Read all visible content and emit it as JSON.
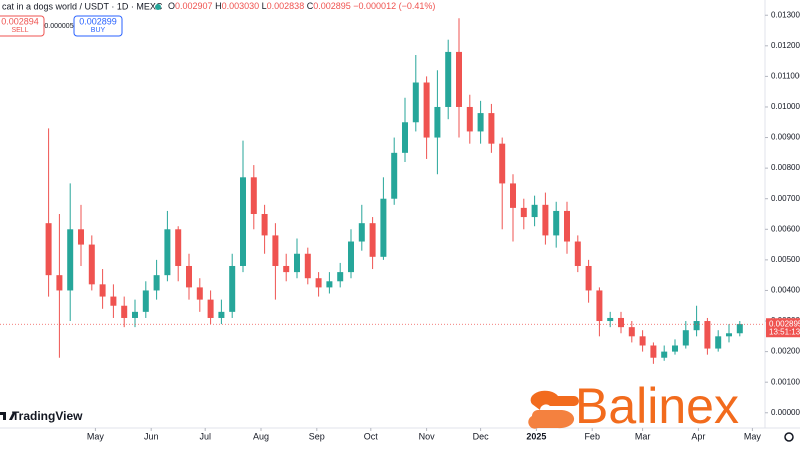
{
  "header": {
    "symbol": "cat in a dogs world / USDT · 1D · MEXC",
    "ohlc": [
      {
        "label": "O",
        "value": "0.002907"
      },
      {
        "label": "H",
        "value": "0.003030"
      },
      {
        "label": "L",
        "value": "0.002838"
      },
      {
        "label": "C",
        "value": "0.002895"
      }
    ],
    "change": "−0.000012 (−0.41%)",
    "sell_price": "0.002894",
    "sell_label": "SELL",
    "spread": "0.000005",
    "buy_price": "0.002899",
    "buy_label": "BUY"
  },
  "chart_data": {
    "type": "candlestick",
    "up_color": "#26a69a",
    "down_color": "#ef5350",
    "x": [
      27,
      33,
      39,
      45,
      51,
      57,
      63,
      69,
      75,
      81,
      87,
      93,
      99,
      105,
      111,
      117,
      123,
      129,
      135,
      141,
      147,
      153,
      159,
      165,
      171,
      177,
      183,
      189,
      195,
      201,
      207,
      213,
      219,
      225,
      231,
      237,
      243,
      249,
      255,
      261,
      267,
      273,
      279,
      285,
      291,
      297,
      303,
      309,
      315,
      321,
      327,
      333,
      339,
      345,
      351,
      357,
      363,
      369,
      375,
      381,
      387,
      393,
      399,
      405,
      411
    ],
    "open": [
      0.0062,
      0.0045,
      0.004,
      0.006,
      0.0055,
      0.0042,
      0.0038,
      0.0035,
      0.0031,
      0.0033,
      0.004,
      0.0045,
      0.006,
      0.0048,
      0.0041,
      0.0037,
      0.0031,
      0.0033,
      0.0048,
      0.0077,
      0.0065,
      0.0058,
      0.0048,
      0.0046,
      0.0052,
      0.0044,
      0.0041,
      0.0043,
      0.0046,
      0.0056,
      0.0062,
      0.0051,
      0.007,
      0.0085,
      0.0095,
      0.0108,
      0.009,
      0.01,
      0.0118,
      0.01,
      0.0092,
      0.0098,
      0.0088,
      0.0075,
      0.0067,
      0.0064,
      0.0068,
      0.0058,
      0.0066,
      0.0056,
      0.0048,
      0.004,
      0.003,
      0.0031,
      0.0028,
      0.0025,
      0.0022,
      0.0018,
      0.002,
      0.0022,
      0.0027,
      0.003,
      0.0021,
      0.0025,
      0.0026
    ],
    "high": [
      0.0093,
      0.0065,
      0.0075,
      0.0068,
      0.0058,
      0.0047,
      0.0042,
      0.0038,
      0.0037,
      0.0043,
      0.005,
      0.0066,
      0.0061,
      0.0052,
      0.0044,
      0.004,
      0.0037,
      0.0052,
      0.0089,
      0.0081,
      0.0068,
      0.0062,
      0.0052,
      0.0057,
      0.0054,
      0.0046,
      0.0046,
      0.0049,
      0.006,
      0.0068,
      0.0064,
      0.0077,
      0.009,
      0.0103,
      0.0117,
      0.011,
      0.0112,
      0.0122,
      0.0129,
      0.0104,
      0.0102,
      0.0101,
      0.009,
      0.0078,
      0.007,
      0.0071,
      0.0072,
      0.0069,
      0.0069,
      0.0058,
      0.005,
      0.0041,
      0.0033,
      0.0033,
      0.003,
      0.0027,
      0.0023,
      0.0022,
      0.0024,
      0.003,
      0.0035,
      0.0031,
      0.0027,
      0.0029,
      0.003
    ],
    "low": [
      0.0038,
      0.0018,
      0.003,
      0.0048,
      0.004,
      0.0034,
      0.0031,
      0.0028,
      0.0028,
      0.0031,
      0.0037,
      0.0043,
      0.0043,
      0.0037,
      0.0033,
      0.0029,
      0.0029,
      0.0031,
      0.0046,
      0.006,
      0.0052,
      0.0037,
      0.0043,
      0.0044,
      0.0042,
      0.0038,
      0.0039,
      0.0041,
      0.0044,
      0.0053,
      0.0047,
      0.005,
      0.0068,
      0.0082,
      0.0092,
      0.0083,
      0.0078,
      0.0096,
      0.009,
      0.0088,
      0.0088,
      0.0085,
      0.006,
      0.0056,
      0.006,
      0.0061,
      0.0055,
      0.0054,
      0.0052,
      0.0046,
      0.0036,
      0.0025,
      0.0028,
      0.0026,
      0.0023,
      0.002,
      0.0016,
      0.0017,
      0.0019,
      0.0021,
      0.0025,
      0.0019,
      0.002,
      0.0023,
      0.0025
    ],
    "close": [
      0.0045,
      0.004,
      0.006,
      0.0055,
      0.0042,
      0.0038,
      0.0035,
      0.0031,
      0.0033,
      0.004,
      0.0045,
      0.006,
      0.0048,
      0.0041,
      0.0037,
      0.0031,
      0.0033,
      0.0048,
      0.0077,
      0.0065,
      0.0058,
      0.0048,
      0.0046,
      0.0052,
      0.0044,
      0.0041,
      0.0043,
      0.0046,
      0.0056,
      0.0062,
      0.0051,
      0.007,
      0.0085,
      0.0095,
      0.0108,
      0.009,
      0.01,
      0.0118,
      0.01,
      0.0092,
      0.0098,
      0.0088,
      0.0075,
      0.0067,
      0.0064,
      0.0068,
      0.0058,
      0.0066,
      0.0056,
      0.0048,
      0.004,
      0.003,
      0.0031,
      0.0028,
      0.0025,
      0.0022,
      0.0018,
      0.002,
      0.0022,
      0.0027,
      0.003,
      0.0021,
      0.0025,
      0.0026,
      0.0029
    ],
    "xlim": [
      0,
      425
    ],
    "xticks": [
      {
        "value": 53,
        "label": "May"
      },
      {
        "value": 84,
        "label": "Jun"
      },
      {
        "value": 114,
        "label": "Jul"
      },
      {
        "value": 145,
        "label": "Aug"
      },
      {
        "value": 176,
        "label": "Sep"
      },
      {
        "value": 206,
        "label": "Oct"
      },
      {
        "value": 237,
        "label": "Nov"
      },
      {
        "value": 267,
        "label": "Dec"
      },
      {
        "value": 298,
        "label": "2025"
      },
      {
        "value": 329,
        "label": "Feb"
      },
      {
        "value": 357,
        "label": "Mar"
      },
      {
        "value": 388,
        "label": "Apr"
      },
      {
        "value": 418,
        "label": "May"
      }
    ],
    "ylim": [
      -0.0004,
      0.0134
    ],
    "yticks": [
      {
        "value": 0,
        "label": "0.000000"
      },
      {
        "value": 0.001,
        "label": "0.001000"
      },
      {
        "value": 0.002,
        "label": "0.002000"
      },
      {
        "value": 0.003,
        "label": "0.003000"
      },
      {
        "value": 0.004,
        "label": "0.004000"
      },
      {
        "value": 0.005,
        "label": "0.005000"
      },
      {
        "value": 0.006,
        "label": "0.006000"
      },
      {
        "value": 0.007,
        "label": "0.007000"
      },
      {
        "value": 0.008,
        "label": "0.008000"
      },
      {
        "value": 0.009,
        "label": "0.009000"
      },
      {
        "value": 0.01,
        "label": "0.010000"
      },
      {
        "value": 0.011,
        "label": "0.011000"
      },
      {
        "value": 0.012,
        "label": "0.012000"
      },
      {
        "value": 0.013,
        "label": "0.013000"
      }
    ],
    "last_price": 0.002895,
    "countdown": "13:51:13"
  },
  "branding": {
    "platform": "TradingView",
    "watermark": "Balinex"
  }
}
